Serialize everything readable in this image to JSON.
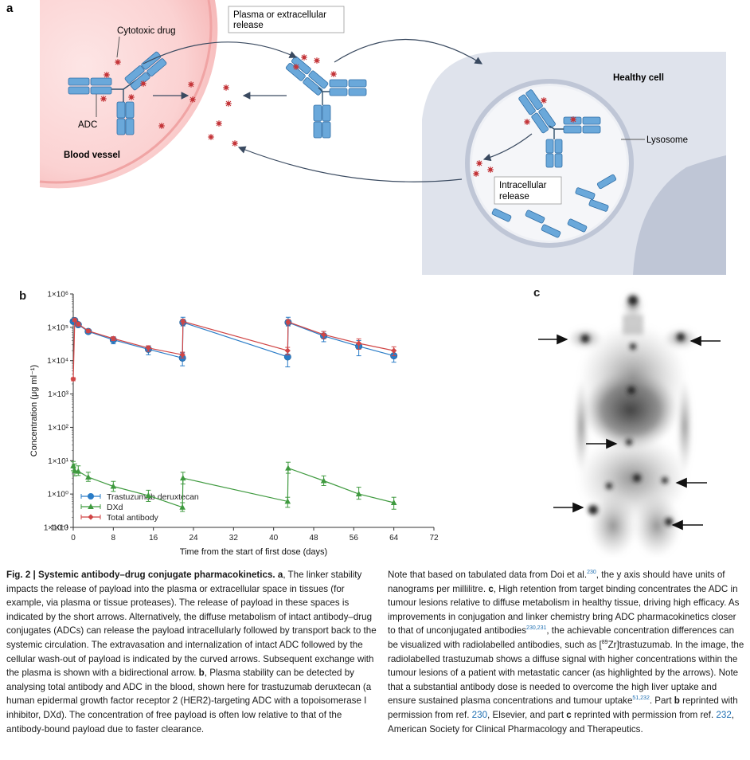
{
  "panel_a": {
    "label": "a",
    "cytotoxic_drug": "Cytotoxic drug",
    "adc": "ADC",
    "blood_vessel": "Blood vessel",
    "plasma_release_1": "Plasma or extracellular",
    "plasma_release_2": "release",
    "healthy_cell": "Healthy cell",
    "lysosome": "Lysosome",
    "intracellular_1": "Intracellular",
    "intracellular_2": "release"
  },
  "panel_b": {
    "label": "b"
  },
  "panel_c": {
    "label": "c"
  },
  "chart_data": {
    "type": "line",
    "xlabel": "Time from the start of first dose (days)",
    "ylabel": "Concentration (μg ml⁻¹)",
    "xlim": [
      0,
      72
    ],
    "xticks": [
      0,
      8,
      16,
      24,
      32,
      40,
      48,
      56,
      64,
      72
    ],
    "ylim_log10": [
      1,
      6
    ],
    "yscale": "log",
    "ytick_labels": [
      "1×10",
      "1×10⁻¹",
      "1×10⁰",
      "1×10¹",
      "1×10²",
      "1×10³",
      "1×10⁴",
      "1×10⁵",
      "1×10⁶"
    ],
    "legend_position": "bottom-left",
    "series": [
      {
        "name": "Trastuzumab deruxtecan",
        "color": "#2a7cc7",
        "marker": "circle",
        "x": [
          0,
          0.3,
          1,
          3,
          8,
          15,
          21.8,
          21.9,
          42.8,
          42.9,
          50,
          57,
          64
        ],
        "y": [
          150000,
          160000,
          120000,
          75000,
          42000,
          22000,
          12000,
          140000,
          13000,
          140000,
          55000,
          27000,
          14000
        ],
        "err_lo": [
          130000,
          140000,
          105000,
          66000,
          32000,
          15000,
          7000,
          110000,
          6500,
          110000,
          37000,
          14000,
          9000
        ],
        "err_hi": [
          170000,
          180000,
          135000,
          85000,
          52000,
          28000,
          17000,
          200000,
          20000,
          200000,
          75000,
          40000,
          20000
        ]
      },
      {
        "name": "DXd",
        "color": "#3f9a3f",
        "marker": "triangle",
        "x": [
          0,
          0.3,
          1,
          3,
          8,
          15,
          21.8,
          21.9,
          42.8,
          42.9,
          50,
          57,
          64
        ],
        "y": [
          7,
          5,
          4.8,
          3.2,
          1.7,
          0.9,
          0.4,
          3,
          0.6,
          6,
          2.5,
          1,
          0.55
        ],
        "err_lo": [
          5,
          3.5,
          3.6,
          2.4,
          1.2,
          0.6,
          0.3,
          2,
          0.4,
          4.2,
          1.8,
          0.7,
          0.35
        ],
        "err_hi": [
          9.5,
          8,
          7,
          4.5,
          2.4,
          1.3,
          0.55,
          4.5,
          0.8,
          9,
          3.5,
          1.6,
          0.8
        ]
      },
      {
        "name": "Total antibody",
        "color": "#d04545",
        "marker": "diamond",
        "x": [
          0,
          0.3,
          1,
          3,
          8,
          15,
          21.8,
          21.9,
          42.8,
          42.9,
          50,
          57,
          64
        ],
        "y": [
          2800,
          165000,
          125000,
          78000,
          46000,
          24000,
          15000,
          150000,
          20000,
          145000,
          60000,
          33000,
          20000
        ],
        "err_lo": [
          2500,
          150000,
          110000,
          70000,
          40000,
          19000,
          12000,
          125000,
          15000,
          125000,
          46000,
          22000,
          14000
        ],
        "err_hi": [
          3100,
          180000,
          140000,
          86000,
          52000,
          28000,
          18000,
          175000,
          25000,
          170000,
          75000,
          45000,
          26000
        ]
      }
    ]
  },
  "caption_left": {
    "title": "Fig. 2 | Systemic antibody–drug conjugate pharmacokinetics.",
    "a": "a",
    "text_a": ", The linker stability impacts the release of payload into the plasma or extracellular space in tissues (for example, via plasma or tissue proteases). The release of payload in these spaces is indicated by the short arrows. Alternatively, the diffuse metabolism of intact antibody–drug conjugates (ADCs) can release the payload intracellularly followed by transport back to the systemic circulation. The extravasation and internalization of intact ADC followed by the cellular wash-out of payload is indicated by the curved arrows. Subsequent exchange with the plasma is shown with a bidirectional arrow.",
    "b": "b",
    "text_b": ", Plasma stability can be detected by analysing total antibody and ADC in the blood, shown here for trastuzumab deruxtecan (a human epidermal growth factor receptor 2 (HER2)-targeting ADC with a topoisomerase I inhibitor, DXd). The concentration of free payload is often low relative to that of the antibody-bound payload due to faster clearance."
  },
  "caption_right": {
    "t1": "Note that based on tabulated data from Doi et al.",
    "ref230": "230",
    "t2": ", the y axis should have units of nanograms per millilitre.",
    "c": "c",
    "t3": ", High retention from target binding concentrates the ADC in tumour lesions relative to diffuse metabolism in healthy tissue, driving high efficacy. As improvements in conjugation and linker chemistry bring ADC pharmacokinetics closer to that of unconjugated antibodies",
    "ref230_231": "230,231",
    "t4": ", the achievable concentration differences can be visualized with radiolabelled antibodies, such as [",
    "iso": "89",
    "t5": "Zr]trastuzumab. In the image, the radiolabelled trastuzumab shows a diffuse signal with higher concentrations within the tumour lesions of a patient with metastatic cancer (as highlighted by the arrows). Note that a substantial antibody dose is needed to overcome the high liver uptake and ensure sustained plasma concentrations and tumour uptake",
    "ref51_232": "51,232",
    "t6": ". Part ",
    "b2": "b",
    "t7": " reprinted with permission from ref. ",
    "r230": "230",
    "t8": ", Elsevier, and part ",
    "c2": "c",
    "t9": " reprinted with permission from ref. ",
    "r232": "232",
    "t10": ", American Society for Clinical Pharmacology and Therapeutics."
  }
}
